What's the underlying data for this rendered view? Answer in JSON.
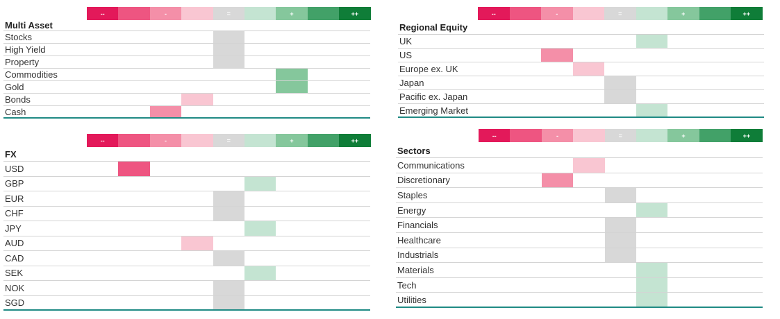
{
  "scale": {
    "levels": [
      {
        "symbol": "--",
        "color": "#e3195a"
      },
      {
        "symbol": "",
        "color": "#ee5581"
      },
      {
        "symbol": "-",
        "color": "#f48fa8"
      },
      {
        "symbol": "",
        "color": "#f9c6d2"
      },
      {
        "symbol": "=",
        "color": "#d8d8d8"
      },
      {
        "symbol": "",
        "color": "#c4e4d2"
      },
      {
        "symbol": "+",
        "color": "#85c79c"
      },
      {
        "symbol": "",
        "color": "#42a168"
      },
      {
        "symbol": "++",
        "color": "#0f7d38"
      }
    ]
  },
  "chart_data": [
    {
      "type": "table",
      "title": "Multi Asset",
      "rows": [
        {
          "label": "Stocks",
          "level": 4
        },
        {
          "label": "High Yield",
          "level": 4
        },
        {
          "label": "Property",
          "level": 4
        },
        {
          "label": "Commodities",
          "level": 6
        },
        {
          "label": "Gold",
          "level": 6
        },
        {
          "label": "Bonds",
          "level": 3
        },
        {
          "label": "Cash",
          "level": 2
        }
      ]
    },
    {
      "type": "table",
      "title": "Regional Equity",
      "rows": [
        {
          "label": "UK",
          "level": 5
        },
        {
          "label": "US",
          "level": 2
        },
        {
          "label": "Europe ex. UK",
          "level": 3
        },
        {
          "label": "Japan",
          "level": 4
        },
        {
          "label": "Pacific ex. Japan",
          "level": 4
        },
        {
          "label": "Emerging Market",
          "level": 5
        }
      ]
    },
    {
      "type": "table",
      "title": "FX",
      "rows": [
        {
          "label": "USD",
          "level": 1
        },
        {
          "label": "GBP",
          "level": 5
        },
        {
          "label": "EUR",
          "level": 4
        },
        {
          "label": "CHF",
          "level": 4
        },
        {
          "label": "JPY",
          "level": 5
        },
        {
          "label": "AUD",
          "level": 3
        },
        {
          "label": "CAD",
          "level": 4
        },
        {
          "label": "SEK",
          "level": 5
        },
        {
          "label": "NOK",
          "level": 4
        },
        {
          "label": "SGD",
          "level": 4
        }
      ]
    },
    {
      "type": "table",
      "title": "Sectors",
      "rows": [
        {
          "label": "Communications",
          "level": 3
        },
        {
          "label": "Discretionary",
          "level": 2
        },
        {
          "label": "Staples",
          "level": 4
        },
        {
          "label": "Energy",
          "level": 5
        },
        {
          "label": "Financials",
          "level": 4
        },
        {
          "label": "Healthcare",
          "level": 4
        },
        {
          "label": "Industrials",
          "level": 4
        },
        {
          "label": "Materials",
          "level": 5
        },
        {
          "label": "Tech",
          "level": 5
        },
        {
          "label": "Utilities",
          "level": 5
        }
      ]
    }
  ]
}
